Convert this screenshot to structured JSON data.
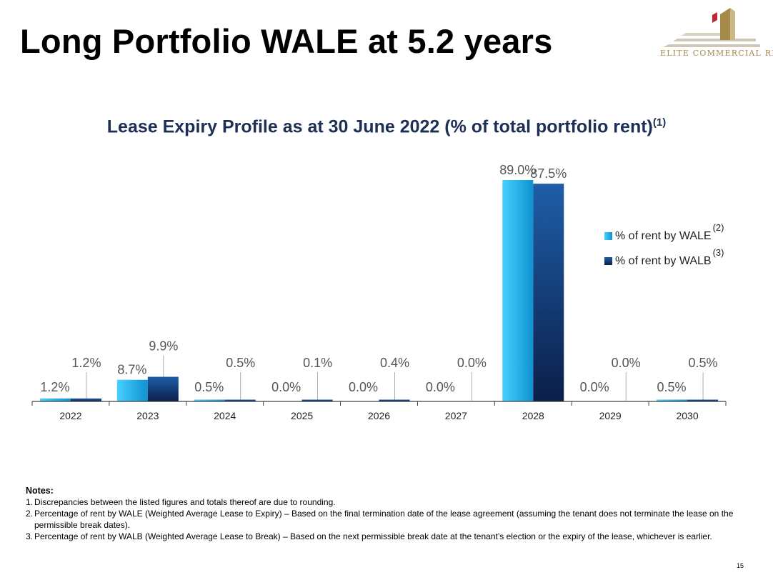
{
  "page": {
    "title": "Long Portfolio WALE at 5.2 years",
    "page_number": "15"
  },
  "logo": {
    "name": "ELITE COMMERCIAL REIT",
    "colors": {
      "gold": "#a58a4a",
      "red": "#c0282e",
      "gray": "#cfc7b7"
    }
  },
  "chart_title": {
    "text": "Lease Expiry Profile as at 30 June 2022 (% of total portfolio rent)",
    "note_ref": "(1)"
  },
  "legend": [
    {
      "label": "% of rent by WALE",
      "note_ref": "(2)",
      "color": "#1bb4ef"
    },
    {
      "label": "% of rent by WALB",
      "note_ref": "(3)",
      "color": "#163a6e"
    }
  ],
  "chart_data": {
    "type": "bar",
    "title": "Lease Expiry Profile as at 30 June 2022 (% of total portfolio rent)",
    "xlabel": "",
    "ylabel": "",
    "categories": [
      "2022",
      "2023",
      "2024",
      "2025",
      "2026",
      "2027",
      "2028",
      "2029",
      "2030"
    ],
    "series": [
      {
        "name": "% of rent by WALE",
        "values": [
          1.2,
          8.7,
          0.5,
          0.0,
          0.0,
          0.0,
          89.0,
          0.0,
          0.5
        ],
        "labels": [
          "1.2%",
          "8.7%",
          "0.5%",
          "0.0%",
          "0.0%",
          "0.0%",
          "89.0%",
          "0.0%",
          "0.5%"
        ],
        "color": "#1bb4ef"
      },
      {
        "name": "% of rent by WALB",
        "values": [
          1.2,
          9.9,
          0.5,
          0.1,
          0.4,
          0.0,
          87.5,
          0.0,
          0.5
        ],
        "labels": [
          "1.2%",
          "9.9%",
          "0.5%",
          "0.1%",
          "0.4%",
          "0.0%",
          "87.5%",
          "0.0%",
          "0.5%"
        ],
        "color": "#163a6e"
      }
    ],
    "ylim": [
      0,
      89
    ],
    "grid": false,
    "legend_position": "right",
    "data_labels": "leader-lines for small values"
  },
  "notes": {
    "heading": "Notes:",
    "items": [
      {
        "num": "1.",
        "text": "Discrepancies between the listed figures and totals thereof are due to rounding."
      },
      {
        "num": "2.",
        "text": "Percentage of rent by WALE (Weighted Average Lease to Expiry) – Based on the final termination date of the lease agreement (assuming the tenant does not terminate the lease on the permissible break dates)."
      },
      {
        "num": "3.",
        "text": "Percentage of rent by WALB (Weighted Average Lease to Break) –  Based on the next permissible break date at the tenant’s election or the expiry of the lease, whichever is earlier."
      }
    ]
  }
}
